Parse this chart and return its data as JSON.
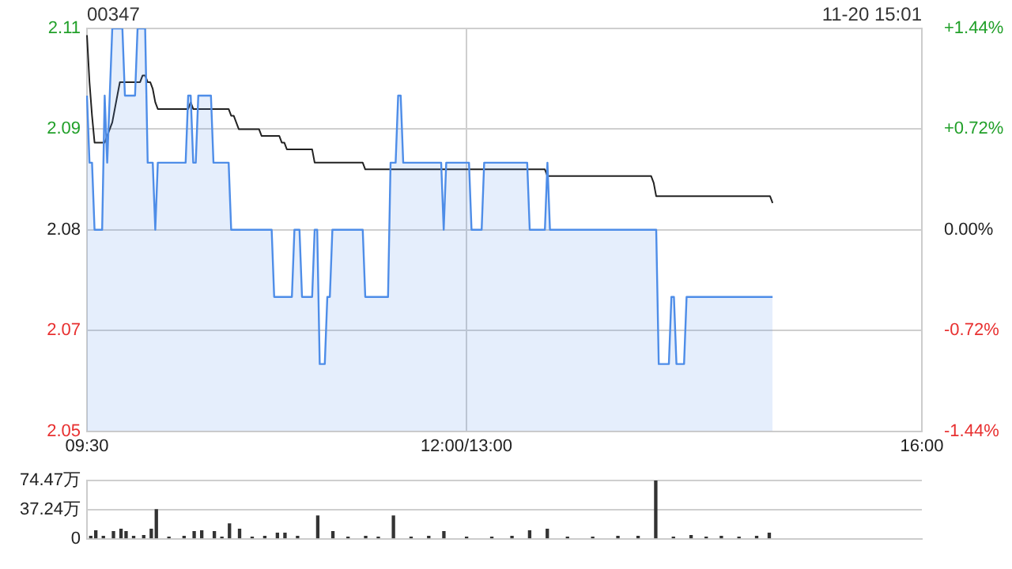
{
  "chart_data": [
    {
      "type": "area",
      "title": "00347",
      "subtitle": "11-20 15:01",
      "legend": false,
      "grid": true,
      "categories": [
        "09:30",
        null,
        null,
        null,
        null,
        null,
        null,
        null,
        null,
        null,
        null,
        null,
        null,
        null,
        null,
        null,
        null,
        null,
        null,
        null,
        null,
        null,
        null,
        null,
        null,
        null,
        null,
        null,
        null,
        null,
        null,
        null,
        null,
        null,
        null,
        null,
        null,
        null,
        null,
        null,
        null,
        null,
        null,
        null,
        null,
        null,
        null,
        null,
        null,
        null,
        null,
        null,
        null,
        null,
        null,
        null,
        null,
        null,
        null,
        null,
        null,
        null,
        null,
        null,
        null,
        null,
        null,
        null,
        null,
        null,
        null,
        null,
        null,
        null,
        null,
        null,
        null,
        null,
        null,
        null,
        null,
        null,
        null,
        null,
        null,
        null,
        null,
        null,
        null,
        null,
        null,
        null,
        null,
        null,
        null,
        null,
        null,
        null,
        null,
        null,
        null,
        null,
        null,
        null,
        null,
        null,
        null,
        null,
        null,
        null,
        null,
        null,
        null,
        null,
        null,
        null,
        null,
        null,
        null,
        null,
        null,
        null,
        null,
        null,
        null,
        null,
        null,
        null,
        null,
        null,
        null,
        null,
        null,
        null,
        null,
        null,
        null,
        null,
        null,
        null,
        null,
        null,
        null,
        null,
        null,
        null,
        null,
        null,
        null,
        null,
        "12:00/13:00",
        null,
        null,
        null,
        null,
        null,
        null,
        null,
        null,
        null,
        null,
        null,
        null,
        null,
        null,
        null,
        null,
        null,
        null,
        null,
        null,
        null,
        null,
        null,
        null,
        null,
        null,
        null,
        null,
        null,
        null,
        null,
        null,
        null,
        null,
        null,
        null,
        null,
        null,
        null,
        null,
        null,
        null,
        null,
        null,
        null,
        null,
        null,
        null,
        null,
        null,
        null,
        null,
        null,
        null,
        null,
        null,
        null,
        null,
        null,
        null,
        null,
        null,
        null,
        null,
        null,
        null,
        null,
        null,
        null,
        null,
        null,
        null,
        null,
        null,
        null,
        null,
        null,
        null,
        null,
        null,
        null,
        null,
        null,
        null,
        null,
        null,
        null,
        null,
        null,
        null,
        null,
        null,
        null,
        null,
        null,
        null,
        null,
        null,
        null,
        null,
        null,
        null,
        null,
        null,
        null,
        null,
        null,
        null,
        null,
        null,
        null,
        null,
        null,
        null,
        null,
        null,
        null,
        null,
        null,
        null,
        null,
        null,
        null,
        null,
        null,
        null,
        null,
        null,
        null,
        null,
        null,
        null,
        null,
        null,
        null,
        null,
        null,
        null,
        null,
        null,
        null,
        null,
        null,
        null,
        null,
        null,
        null,
        null,
        null,
        null,
        null,
        null,
        null,
        null,
        null,
        null,
        null,
        null,
        null,
        null,
        null,
        null,
        null,
        null,
        null,
        null,
        null,
        null,
        null,
        null,
        null,
        null,
        null,
        null,
        null,
        null,
        null,
        null,
        null,
        "16:00"
      ],
      "ylim": [
        2.05,
        2.11
      ],
      "yticks": [
        {
          "value": 2.05,
          "label": "2.05"
        },
        {
          "value": 2.065,
          "label": "2.07"
        },
        {
          "value": 2.08,
          "label": "2.08"
        },
        {
          "value": 2.095,
          "label": "2.09"
        },
        {
          "value": 2.11,
          "label": "2.11"
        }
      ],
      "y2lim": [
        -1.44,
        1.44
      ],
      "y2ticks": [
        {
          "value": -1.44,
          "label": "-1.44%"
        },
        {
          "value": -0.72,
          "label": "-0.72%"
        },
        {
          "value": 0,
          "label": "0.00%"
        },
        {
          "value": 0.72,
          "label": "+0.72%"
        },
        {
          "value": 1.44,
          "label": "+1.44%"
        }
      ],
      "series": [
        {
          "color": "#4e8de8",
          "values": [
            2.1,
            2.09,
            2.09,
            2.08,
            2.08,
            2.08,
            2.08,
            2.1,
            2.09,
            2.1,
            2.11,
            2.11,
            2.11,
            2.11,
            2.11,
            2.1,
            2.1,
            2.1,
            2.1,
            2.1,
            2.11,
            2.11,
            2.11,
            2.11,
            2.09,
            2.09,
            2.09,
            2.08,
            2.09,
            2.09,
            2.09,
            2.09,
            2.09,
            2.09,
            2.09,
            2.09,
            2.09,
            2.09,
            2.09,
            2.09,
            2.1,
            2.1,
            2.09,
            2.09,
            2.1,
            2.1,
            2.1,
            2.1,
            2.1,
            2.1,
            2.09,
            2.09,
            2.09,
            2.09,
            2.09,
            2.09,
            2.09,
            2.08,
            2.08,
            2.08,
            2.08,
            2.08,
            2.08,
            2.08,
            2.08,
            2.08,
            2.08,
            2.08,
            2.08,
            2.08,
            2.08,
            2.08,
            2.08,
            2.08,
            2.07,
            2.07,
            2.07,
            2.07,
            2.07,
            2.07,
            2.07,
            2.07,
            2.08,
            2.08,
            2.08,
            2.07,
            2.07,
            2.07,
            2.07,
            2.07,
            2.08,
            2.08,
            2.06,
            2.06,
            2.06,
            2.07,
            2.07,
            2.08,
            2.08,
            2.08,
            2.08,
            2.08,
            2.08,
            2.08,
            2.08,
            2.08,
            2.08,
            2.08,
            2.08,
            2.08,
            2.07,
            2.07,
            2.07,
            2.07,
            2.07,
            2.07,
            2.07,
            2.07,
            2.07,
            2.07,
            2.09,
            2.09,
            2.09,
            2.1,
            2.1,
            2.09,
            2.09,
            2.09,
            2.09,
            2.09,
            2.09,
            2.09,
            2.09,
            2.09,
            2.09,
            2.09,
            2.09,
            2.09,
            2.09,
            2.09,
            2.09,
            2.08,
            2.09,
            2.09,
            2.09,
            2.09,
            2.09,
            2.09,
            2.09,
            2.09,
            2.09,
            2.09,
            2.08,
            2.08,
            2.08,
            2.08,
            2.08,
            2.09,
            2.09,
            2.09,
            2.09,
            2.09,
            2.09,
            2.09,
            2.09,
            2.09,
            2.09,
            2.09,
            2.09,
            2.09,
            2.09,
            2.09,
            2.09,
            2.09,
            2.09,
            2.08,
            2.08,
            2.08,
            2.08,
            2.08,
            2.08,
            2.08,
            2.09,
            2.08,
            2.08,
            2.08,
            2.08,
            2.08,
            2.08,
            2.08,
            2.08,
            2.08,
            2.08,
            2.08,
            2.08,
            2.08,
            2.08,
            2.08,
            2.08,
            2.08,
            2.08,
            2.08,
            2.08,
            2.08,
            2.08,
            2.08,
            2.08,
            2.08,
            2.08,
            2.08,
            2.08,
            2.08,
            2.08,
            2.08,
            2.08,
            2.08,
            2.08,
            2.08,
            2.08,
            2.08,
            2.08,
            2.08,
            2.08,
            2.08,
            2.08,
            2.08,
            2.06,
            2.06,
            2.06,
            2.06,
            2.06,
            2.07,
            2.07,
            2.06,
            2.06,
            2.06,
            2.06,
            2.07,
            2.07,
            2.07,
            2.07,
            2.07,
            2.07,
            2.07,
            2.07,
            2.07,
            2.07,
            2.07,
            2.07,
            2.07,
            2.07,
            2.07,
            2.07,
            2.07,
            2.07,
            2.07,
            2.07,
            2.07,
            2.07,
            2.07,
            2.07,
            2.07,
            2.07,
            2.07,
            2.07,
            2.07,
            2.07,
            2.07,
            2.07,
            2.07,
            2.07,
            2.07,
            null,
            null,
            null,
            null,
            null,
            null,
            null,
            null,
            null,
            null,
            null,
            null,
            null,
            null,
            null,
            null,
            null,
            null,
            null,
            null,
            null,
            null,
            null,
            null,
            null,
            null,
            null,
            null,
            null,
            null,
            null,
            null,
            null,
            null,
            null,
            null,
            null,
            null,
            null,
            null,
            null,
            null,
            null,
            null,
            null,
            null,
            null,
            null,
            null,
            null,
            null,
            null,
            null,
            null,
            null,
            null,
            null,
            null,
            null
          ]
        },
        {
          "type": "line",
          "color": "#222222",
          "values": [
            2.109,
            2.102,
            2.097,
            2.093,
            2.093,
            2.093,
            2.093,
            2.093,
            2.094,
            2.095,
            2.096,
            2.098,
            2.1,
            2.102,
            2.102,
            2.102,
            2.102,
            2.102,
            2.102,
            2.102,
            2.102,
            2.102,
            2.103,
            2.103,
            2.102,
            2.102,
            2.101,
            2.099,
            2.098,
            2.098,
            2.098,
            2.098,
            2.098,
            2.098,
            2.098,
            2.098,
            2.098,
            2.098,
            2.098,
            2.098,
            2.098,
            2.099,
            2.098,
            2.098,
            2.098,
            2.098,
            2.098,
            2.098,
            2.098,
            2.098,
            2.098,
            2.098,
            2.098,
            2.098,
            2.098,
            2.098,
            2.098,
            2.097,
            2.097,
            2.096,
            2.095,
            2.095,
            2.095,
            2.095,
            2.095,
            2.095,
            2.095,
            2.095,
            2.095,
            2.094,
            2.094,
            2.094,
            2.094,
            2.094,
            2.094,
            2.094,
            2.094,
            2.093,
            2.093,
            2.092,
            2.092,
            2.092,
            2.092,
            2.092,
            2.092,
            2.092,
            2.092,
            2.092,
            2.092,
            2.092,
            2.09,
            2.09,
            2.09,
            2.09,
            2.09,
            2.09,
            2.09,
            2.09,
            2.09,
            2.09,
            2.09,
            2.09,
            2.09,
            2.09,
            2.09,
            2.09,
            2.09,
            2.09,
            2.09,
            2.09,
            2.089,
            2.089,
            2.089,
            2.089,
            2.089,
            2.089,
            2.089,
            2.089,
            2.089,
            2.089,
            2.089,
            2.089,
            2.089,
            2.089,
            2.089,
            2.089,
            2.089,
            2.089,
            2.089,
            2.089,
            2.089,
            2.089,
            2.089,
            2.089,
            2.089,
            2.089,
            2.089,
            2.089,
            2.089,
            2.089,
            2.089,
            2.089,
            2.089,
            2.089,
            2.089,
            2.089,
            2.089,
            2.089,
            2.089,
            2.089,
            2.089,
            2.089,
            2.089,
            2.089,
            2.089,
            2.089,
            2.089,
            2.089,
            2.089,
            2.089,
            2.089,
            2.089,
            2.089,
            2.089,
            2.089,
            2.089,
            2.089,
            2.089,
            2.089,
            2.089,
            2.089,
            2.089,
            2.089,
            2.089,
            2.089,
            2.089,
            2.089,
            2.089,
            2.089,
            2.089,
            2.089,
            2.089,
            2.088,
            2.088,
            2.088,
            2.088,
            2.088,
            2.088,
            2.088,
            2.088,
            2.088,
            2.088,
            2.088,
            2.088,
            2.088,
            2.088,
            2.088,
            2.088,
            2.088,
            2.088,
            2.088,
            2.088,
            2.088,
            2.088,
            2.088,
            2.088,
            2.088,
            2.088,
            2.088,
            2.088,
            2.088,
            2.088,
            2.088,
            2.088,
            2.088,
            2.088,
            2.088,
            2.088,
            2.088,
            2.088,
            2.088,
            2.088,
            2.088,
            2.088,
            2.087,
            2.085,
            2.085,
            2.085,
            2.085,
            2.085,
            2.085,
            2.085,
            2.085,
            2.085,
            2.085,
            2.085,
            2.085,
            2.085,
            2.085,
            2.085,
            2.085,
            2.085,
            2.085,
            2.085,
            2.085,
            2.085,
            2.085,
            2.085,
            2.085,
            2.085,
            2.085,
            2.085,
            2.085,
            2.085,
            2.085,
            2.085,
            2.085,
            2.085,
            2.085,
            2.085,
            2.085,
            2.085,
            2.085,
            2.085,
            2.085,
            2.085,
            2.085,
            2.085,
            2.085,
            2.085,
            2.085,
            2.084,
            null,
            null,
            null,
            null,
            null,
            null,
            null,
            null,
            null,
            null,
            null,
            null,
            null,
            null,
            null,
            null,
            null,
            null,
            null,
            null,
            null,
            null,
            null,
            null,
            null,
            null,
            null,
            null,
            null,
            null,
            null,
            null,
            null,
            null,
            null,
            null,
            null,
            null,
            null,
            null,
            null,
            null,
            null,
            null,
            null,
            null,
            null,
            null,
            null,
            null,
            null,
            null,
            null,
            null,
            null,
            null,
            null,
            null,
            null
          ]
        }
      ]
    },
    {
      "type": "bar",
      "legend": false,
      "grid": true,
      "categories": [
        null,
        null,
        null,
        null,
        null,
        null,
        null,
        null,
        null,
        null,
        null,
        null,
        null,
        null,
        null,
        null,
        null,
        null,
        null,
        null,
        null,
        null,
        null,
        null,
        null,
        null,
        null,
        null,
        null,
        null,
        null,
        null,
        null,
        null,
        null,
        null,
        null,
        null,
        null,
        null,
        null,
        null,
        null,
        null,
        null,
        null,
        null,
        null,
        null,
        null,
        null,
        null,
        null,
        null,
        null,
        null,
        null,
        null,
        null,
        null,
        null,
        null,
        null,
        null,
        null,
        null,
        null,
        null,
        null,
        null,
        null,
        null,
        null,
        null,
        null,
        null,
        null,
        null,
        null,
        null,
        null,
        null,
        null,
        null,
        null,
        null,
        null,
        null,
        null,
        null,
        null,
        null,
        null,
        null,
        null,
        null,
        null,
        null,
        null,
        null,
        null,
        null,
        null,
        null,
        null,
        null,
        null,
        null,
        null,
        null,
        null,
        null,
        null,
        null,
        null,
        null,
        null,
        null,
        null,
        null,
        null,
        null,
        null,
        null,
        null,
        null,
        null,
        null,
        null,
        null,
        null,
        null,
        null,
        null,
        null,
        null,
        null,
        null,
        null,
        null,
        null,
        null,
        null,
        null,
        null,
        null,
        null,
        null,
        null,
        null,
        null,
        null,
        null,
        null,
        null,
        null,
        null,
        null,
        null,
        null,
        null,
        null,
        null,
        null,
        null,
        null,
        null,
        null,
        null,
        null,
        null,
        null,
        null,
        null,
        null,
        null,
        null,
        null,
        null,
        null,
        null,
        null,
        null,
        null,
        null,
        null,
        null,
        null,
        null,
        null,
        null,
        null,
        null,
        null,
        null,
        null,
        null,
        null,
        null,
        null,
        null,
        null,
        null,
        null,
        null,
        null,
        null,
        null,
        null,
        null,
        null,
        null,
        null,
        null,
        null,
        null,
        null,
        null,
        null,
        null,
        null,
        null,
        null,
        null,
        null,
        null,
        null,
        null,
        null,
        null,
        null,
        null,
        null,
        null,
        null,
        null,
        null,
        null,
        null,
        null,
        null,
        null,
        null,
        null,
        null,
        null,
        null,
        null,
        null,
        null,
        null,
        null,
        null,
        null,
        null,
        null,
        null,
        null,
        null,
        null,
        null,
        null,
        null,
        null,
        null,
        null,
        null,
        null,
        null,
        null,
        null,
        null,
        null,
        null,
        null,
        null,
        null,
        null,
        null,
        null,
        null,
        null,
        null,
        null,
        null,
        null,
        null,
        null,
        null,
        null,
        null,
        null,
        null,
        null,
        null,
        null,
        null,
        null,
        null,
        null,
        null,
        null,
        null,
        null,
        null,
        null,
        null,
        null,
        null,
        null,
        null,
        null,
        null,
        null,
        null,
        null,
        null,
        null,
        null,
        null,
        null,
        null,
        null,
        null,
        null,
        null,
        null,
        null,
        null,
        null,
        null
      ],
      "ylim": [
        0,
        74.47
      ],
      "yticks": [
        {
          "value": 0,
          "label": "0"
        },
        {
          "value": 37.24,
          "label": "37.24万"
        },
        {
          "value": 74.47,
          "label": "74.47万"
        }
      ],
      "series": [
        {
          "color": "#333333",
          "values": [
            null,
            3,
            null,
            10,
            null,
            null,
            3,
            null,
            null,
            null,
            9,
            null,
            null,
            12,
            null,
            9,
            null,
            null,
            3,
            null,
            null,
            null,
            4,
            null,
            null,
            12,
            null,
            37,
            null,
            null,
            null,
            null,
            2,
            null,
            null,
            null,
            null,
            null,
            3,
            null,
            null,
            null,
            9,
            null,
            null,
            10,
            null,
            null,
            null,
            null,
            9,
            null,
            null,
            2,
            null,
            null,
            19,
            null,
            null,
            null,
            12,
            null,
            null,
            null,
            null,
            2,
            null,
            null,
            null,
            null,
            3,
            null,
            null,
            null,
            null,
            7,
            null,
            null,
            7,
            null,
            null,
            null,
            null,
            3,
            null,
            null,
            null,
            null,
            null,
            null,
            null,
            29,
            null,
            null,
            null,
            null,
            null,
            9,
            null,
            null,
            null,
            null,
            null,
            2,
            null,
            null,
            null,
            null,
            null,
            null,
            3,
            null,
            null,
            null,
            null,
            2,
            null,
            null,
            null,
            null,
            null,
            29,
            null,
            null,
            null,
            null,
            null,
            null,
            2,
            null,
            null,
            null,
            null,
            null,
            null,
            3,
            null,
            null,
            null,
            null,
            null,
            9,
            null,
            null,
            null,
            null,
            null,
            null,
            null,
            null,
            2,
            null,
            null,
            null,
            null,
            null,
            null,
            null,
            null,
            null,
            2,
            null,
            null,
            null,
            null,
            null,
            null,
            null,
            3,
            null,
            null,
            null,
            null,
            null,
            null,
            10,
            null,
            null,
            null,
            null,
            null,
            null,
            12,
            null,
            null,
            null,
            null,
            null,
            null,
            null,
            2,
            null,
            null,
            null,
            null,
            null,
            null,
            null,
            null,
            null,
            2,
            null,
            null,
            null,
            null,
            null,
            null,
            null,
            null,
            null,
            3,
            null,
            null,
            null,
            null,
            null,
            null,
            null,
            3,
            null,
            null,
            null,
            null,
            null,
            null,
            74,
            null,
            null,
            null,
            null,
            null,
            null,
            2,
            null,
            null,
            null,
            null,
            null,
            null,
            4,
            null,
            null,
            null,
            null,
            null,
            2,
            null,
            null,
            null,
            null,
            null,
            3,
            null,
            null,
            null,
            null,
            null,
            null,
            2,
            null,
            null,
            null,
            null,
            null,
            null,
            3,
            null,
            null,
            null,
            null,
            7,
            null,
            null,
            null,
            null,
            null,
            null,
            null,
            null,
            null,
            null,
            null,
            null,
            null,
            null,
            null,
            null,
            null,
            null,
            null,
            null,
            null,
            null,
            null,
            null,
            null,
            null,
            null,
            null,
            null,
            null,
            null,
            null,
            null,
            null,
            null,
            null,
            null,
            null,
            null,
            null,
            null,
            null,
            null,
            null,
            null,
            null,
            null,
            null,
            null,
            null,
            null,
            null,
            null,
            null,
            null,
            null,
            null,
            null,
            null,
            null
          ]
        }
      ]
    }
  ]
}
